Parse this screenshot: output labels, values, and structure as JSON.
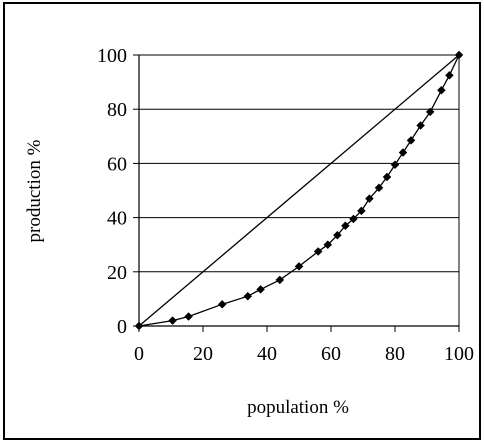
{
  "chart_data": {
    "type": "line",
    "xlabel": "population %",
    "ylabel": "production %",
    "xlim": [
      0,
      100
    ],
    "ylim": [
      0,
      100
    ],
    "x_ticks": [
      "0",
      "20",
      "40",
      "60",
      "80",
      "100"
    ],
    "y_ticks": [
      "0",
      "20",
      "40",
      "60",
      "80",
      "100"
    ],
    "grid": "horizontal",
    "legend": "none",
    "series": [
      {
        "kind": "reference-diagonal",
        "x": [
          0,
          100
        ],
        "y": [
          0,
          100
        ]
      },
      {
        "kind": "lorenz-curve",
        "marker": "diamond",
        "x": [
          0,
          10.5,
          15.5,
          26,
          34,
          38,
          44,
          50,
          56,
          59,
          62,
          64.5,
          67,
          69.5,
          72,
          75,
          77.5,
          80,
          82.5,
          85,
          88,
          91,
          94.5,
          97,
          100
        ],
        "y": [
          0,
          2,
          3.5,
          8,
          11,
          13.5,
          17,
          22,
          27.5,
          30,
          33.5,
          37,
          39.5,
          42.5,
          47,
          51,
          55,
          59.5,
          64,
          68.5,
          74,
          79,
          87,
          92.5,
          100
        ]
      }
    ],
    "colors": {
      "line": "#000000",
      "grid": "#000000",
      "marker": "#000000"
    }
  }
}
